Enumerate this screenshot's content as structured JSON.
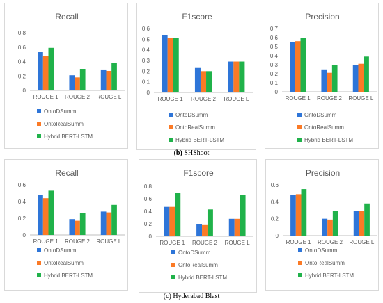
{
  "series_colors": [
    "#2e75d8",
    "#fb7a26",
    "#20b24a"
  ],
  "captions": [
    {
      "letter": "(b)",
      "name": "SHShoot"
    },
    {
      "letter": "",
      "name": "(c) Hyderabad Blast"
    }
  ],
  "chart_data": [
    {
      "type": "bar",
      "title": "Recall",
      "xlabel": "",
      "ylabel": "",
      "categories": [
        "ROUGE 1",
        "ROUGE 2",
        "ROUGE L"
      ],
      "ylim": [
        0,
        0.8
      ],
      "yticks": [
        "0",
        "0.2",
        "0.4",
        "0.6",
        "0.8"
      ],
      "grid": false,
      "legend": "bottom",
      "series": [
        {
          "name": "OntoDSumm",
          "values": [
            0.53,
            0.21,
            0.28
          ]
        },
        {
          "name": "OntoRealSumm",
          "values": [
            0.48,
            0.18,
            0.27
          ]
        },
        {
          "name": "Hybrid BERT-LSTM",
          "values": [
            0.59,
            0.29,
            0.38
          ]
        }
      ]
    },
    {
      "type": "bar",
      "title": "F1score",
      "xlabel": "",
      "ylabel": "",
      "categories": [
        "ROUGE 1",
        "ROUGE 2",
        "ROUGE L"
      ],
      "ylim": [
        0,
        0.6
      ],
      "yticks": [
        "0",
        "0.1",
        "0.2",
        "0.3",
        "0.4",
        "0.5",
        "0.6"
      ],
      "grid": false,
      "legend": "bottom",
      "series": [
        {
          "name": "OntoDSumm",
          "values": [
            0.54,
            0.23,
            0.29
          ]
        },
        {
          "name": "OntoRealSumm",
          "values": [
            0.51,
            0.2,
            0.29
          ]
        },
        {
          "name": "Hybrid BERT-LSTM",
          "values": [
            0.51,
            0.2,
            0.29
          ]
        }
      ]
    },
    {
      "type": "bar",
      "title": "Precision",
      "xlabel": "",
      "ylabel": "",
      "categories": [
        "ROUGE 1",
        "ROUGE 2",
        "ROUGE L"
      ],
      "ylim": [
        0,
        0.7
      ],
      "yticks": [
        "0",
        "0.1",
        "0.2",
        "0.3",
        "0.4",
        "0.5",
        "0.6",
        "0.7"
      ],
      "grid": false,
      "legend": "bottom",
      "series": [
        {
          "name": "OntoDSumm",
          "values": [
            0.55,
            0.24,
            0.3
          ]
        },
        {
          "name": "OntoRealSumm",
          "values": [
            0.56,
            0.21,
            0.31
          ]
        },
        {
          "name": "Hybrid BERT-LSTM",
          "values": [
            0.6,
            0.3,
            0.39
          ]
        }
      ]
    },
    {
      "type": "bar",
      "title": "Recall",
      "xlabel": "",
      "ylabel": "",
      "categories": [
        "ROUGE 1",
        "ROUGE 2",
        "ROUGE L"
      ],
      "ylim": [
        0,
        0.6
      ],
      "yticks": [
        "0",
        "0.2",
        "0.4",
        "0.6"
      ],
      "grid": false,
      "legend": "bottom",
      "series": [
        {
          "name": "OntoDSumm",
          "values": [
            0.48,
            0.19,
            0.28
          ]
        },
        {
          "name": "OntoRealSumm",
          "values": [
            0.44,
            0.17,
            0.27
          ]
        },
        {
          "name": "Hybrid BERT-LSTM",
          "values": [
            0.53,
            0.26,
            0.36
          ]
        }
      ]
    },
    {
      "type": "bar",
      "title": "F1score",
      "xlabel": "",
      "ylabel": "",
      "categories": [
        "ROUGE 1",
        "ROUGE 2",
        "ROUGE L"
      ],
      "ylim": [
        0,
        0.8
      ],
      "yticks": [
        "0",
        "0.2",
        "0.4",
        "0.6",
        "0.8"
      ],
      "grid": false,
      "legend": "bottom",
      "series": [
        {
          "name": "OntoDSumm",
          "values": [
            0.47,
            0.19,
            0.28
          ]
        },
        {
          "name": "OntoRealSumm",
          "values": [
            0.47,
            0.18,
            0.28
          ]
        },
        {
          "name": "Hybrid BERT-LSTM",
          "values": [
            0.7,
            0.43,
            0.66
          ]
        }
      ]
    },
    {
      "type": "bar",
      "title": "Precision",
      "xlabel": "",
      "ylabel": "",
      "categories": [
        "ROUGE 1",
        "ROUGE 2",
        "ROUGE L"
      ],
      "ylim": [
        0,
        0.6
      ],
      "yticks": [
        "0",
        "0.2",
        "0.4",
        "0.6"
      ],
      "grid": false,
      "legend": "bottom",
      "series": [
        {
          "name": "OntoDSumm",
          "values": [
            0.48,
            0.2,
            0.29
          ]
        },
        {
          "name": "OntoRealSumm",
          "values": [
            0.49,
            0.19,
            0.29
          ]
        },
        {
          "name": "Hybrid BERT-LSTM",
          "values": [
            0.55,
            0.29,
            0.38
          ]
        }
      ]
    }
  ]
}
